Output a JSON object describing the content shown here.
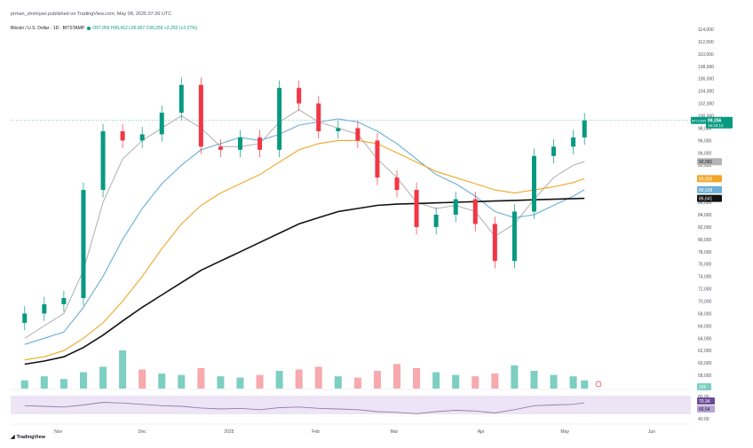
{
  "header": {
    "publish_line": "prman_shirinyan published on TradingView.com, May 08, 2025 07:26 UTC",
    "symbol": "Bitcoin / U.S. Dollar · 1D · BITSTAMP",
    "ohlc": "O97,059 H99,412 L96,907 C99,256 +2,202 (+2.27%)"
  },
  "logo": {
    "text": "TradingView",
    "icon": "tradingview-logo-icon"
  },
  "colors": {
    "up": "#089981",
    "down": "#f23645",
    "vol_up": "#7ccfc1",
    "vol_down": "#f7a9ae",
    "ma_fast": "#b5b5b5",
    "ma_20": "#6aaed6",
    "ma_50": "#f0a629",
    "ma_200": "#111111",
    "rsi": "#9c7ba5",
    "rsi_band": "#ede5f6"
  },
  "chart_data": {
    "type": "line",
    "title": "Bitcoin / U.S. Dollar · 1D · BITSTAMP",
    "x_axis_labels": [
      "Nov",
      "Dec",
      "2025",
      "Feb",
      "Mar",
      "Apr",
      "May",
      "Jun"
    ],
    "y_axis_labels": [
      "114,000",
      "112,000",
      "110,000",
      "108,000",
      "106,000",
      "104,000",
      "102,000",
      "100,000",
      "98,000",
      "96,000",
      "94,000",
      "92,000",
      "90,000",
      "88,000",
      "86,000",
      "84,000",
      "82,000",
      "80,000",
      "78,000",
      "76,000",
      "74,000",
      "72,000",
      "70,000",
      "68,000",
      "66,000",
      "64,000",
      "62,000",
      "60,000",
      "58,000",
      "56,000"
    ],
    "ylim": [
      56000,
      114000
    ],
    "price_close_series": {
      "name": "BTCUSD",
      "dates": [
        "2024-10-20",
        "2024-10-27",
        "2024-11-03",
        "2024-11-10",
        "2024-11-17",
        "2024-11-24",
        "2024-12-01",
        "2024-12-08",
        "2024-12-15",
        "2024-12-22",
        "2024-12-29",
        "2025-01-05",
        "2025-01-12",
        "2025-01-19",
        "2025-01-26",
        "2025-02-02",
        "2025-02-09",
        "2025-02-16",
        "2025-02-23",
        "2025-03-02",
        "2025-03-09",
        "2025-03-16",
        "2025-03-23",
        "2025-03-30",
        "2025-04-06",
        "2025-04-13",
        "2025-04-20",
        "2025-04-27",
        "2025-05-04",
        "2025-05-08"
      ],
      "values": [
        68000,
        69500,
        70500,
        88000,
        97500,
        96000,
        97000,
        100500,
        105000,
        95000,
        94500,
        96500,
        94500,
        104500,
        102000,
        97500,
        98000,
        96000,
        90000,
        88000,
        82000,
        84000,
        86500,
        82500,
        76500,
        84500,
        93500,
        95000,
        96500,
        99256
      ]
    },
    "ma_series": [
      {
        "name": "",
        "last_value": 92581,
        "last_label": "92,581",
        "color": "#b5b5b5",
        "values": [
          64000,
          66000,
          68000,
          75000,
          86000,
          93000,
          96000,
          98000,
          100000,
          98000,
          95000,
          95000,
          95500,
          99000,
          101000,
          99000,
          98000,
          97000,
          93000,
          90000,
          86000,
          85000,
          85500,
          84500,
          80500,
          82500,
          86500,
          90000,
          92000,
          92581
        ]
      },
      {
        "name": "",
        "last_value": 88028,
        "last_label": "88,028",
        "color": "#6aaed6",
        "values": [
          63000,
          64000,
          65000,
          69000,
          74000,
          80000,
          85000,
          89000,
          92000,
          94500,
          95500,
          96500,
          96000,
          97000,
          98500,
          99000,
          99500,
          99000,
          97500,
          95500,
          93000,
          90500,
          89000,
          87000,
          84500,
          83500,
          84000,
          85500,
          87000,
          88028
        ]
      },
      {
        "name": "",
        "last_value": 89826,
        "last_label": "89,826",
        "color": "#f0a629",
        "values": [
          60500,
          61000,
          62000,
          64000,
          66500,
          70000,
          74000,
          78500,
          82500,
          85500,
          87500,
          89000,
          90500,
          92500,
          94500,
          95500,
          96000,
          96000,
          95500,
          94000,
          92500,
          91000,
          90000,
          89000,
          88000,
          87500,
          88000,
          88500,
          89200,
          89826
        ]
      },
      {
        "name": "",
        "last_value": 86641,
        "last_label": "86,641",
        "color": "#111111",
        "values": [
          59800,
          60300,
          61000,
          62500,
          64500,
          66800,
          69000,
          71000,
          73000,
          75000,
          76500,
          78000,
          79500,
          81000,
          82500,
          83500,
          84500,
          85000,
          85500,
          85700,
          85800,
          85900,
          86000,
          86100,
          86200,
          86300,
          86400,
          86500,
          86600,
          86641
        ]
      }
    ],
    "last_price_label": "99,256",
    "last_price_symbol": "BTCUSD",
    "last_price_countdown": "16:33:12",
    "volume": {
      "last_label": "325",
      "values": [
        6,
        9,
        7,
        12,
        16,
        28,
        14,
        11,
        10,
        15,
        9,
        8,
        10,
        13,
        14,
        16,
        9,
        8,
        13,
        18,
        15,
        12,
        10,
        9,
        11,
        17,
        13,
        10,
        9,
        6
      ],
      "up": [
        true,
        true,
        true,
        true,
        true,
        true,
        false,
        true,
        true,
        false,
        true,
        true,
        false,
        true,
        false,
        false,
        true,
        false,
        false,
        false,
        false,
        true,
        true,
        false,
        false,
        true,
        true,
        true,
        true,
        true
      ]
    },
    "rsi": {
      "labels": [
        "80.00",
        "40.00"
      ],
      "value_labels": [
        "70.34",
        "66.54"
      ],
      "values": [
        62,
        60,
        58,
        64,
        72,
        70,
        66,
        62,
        60,
        55,
        52,
        54,
        50,
        56,
        58,
        54,
        52,
        50,
        44,
        42,
        38,
        44,
        48,
        46,
        40,
        50,
        62,
        64,
        66,
        70.34
      ]
    }
  }
}
